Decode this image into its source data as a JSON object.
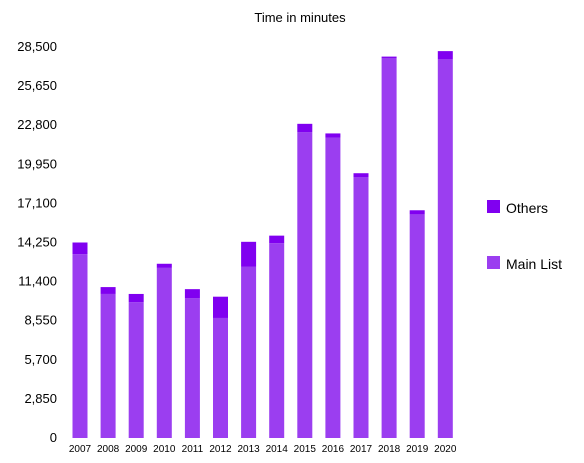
{
  "chart_data": {
    "type": "bar",
    "stacked": true,
    "title": "Time in minutes",
    "xlabel": "",
    "ylabel": "",
    "ylim": [
      0,
      28500
    ],
    "yticks": [
      0,
      2850,
      5700,
      8550,
      11400,
      14250,
      17100,
      19950,
      22800,
      25650,
      28500
    ],
    "ytick_labels": [
      "0",
      "2,850",
      "5,700",
      "8,550",
      "11,400",
      "14,250",
      "17,100",
      "19,950",
      "22,800",
      "25,650",
      "28,500"
    ],
    "categories": [
      "2007",
      "2008",
      "2009",
      "2010",
      "2011",
      "2012",
      "2013",
      "2014",
      "2015",
      "2016",
      "2017",
      "2018",
      "2019",
      "2020"
    ],
    "series": [
      {
        "name": "Main List",
        "color": "#9b3ef0",
        "values": [
          13400,
          10500,
          9900,
          12400,
          10200,
          8750,
          12500,
          14200,
          22300,
          21900,
          19000,
          27700,
          16300,
          27600
        ]
      },
      {
        "name": "Others",
        "color": "#8000f0",
        "values": [
          850,
          500,
          600,
          300,
          650,
          1550,
          1800,
          550,
          600,
          300,
          300,
          100,
          300,
          600
        ]
      }
    ],
    "legend": {
      "position": "right",
      "entries": [
        "Others",
        "Main List"
      ]
    },
    "grid": false
  }
}
